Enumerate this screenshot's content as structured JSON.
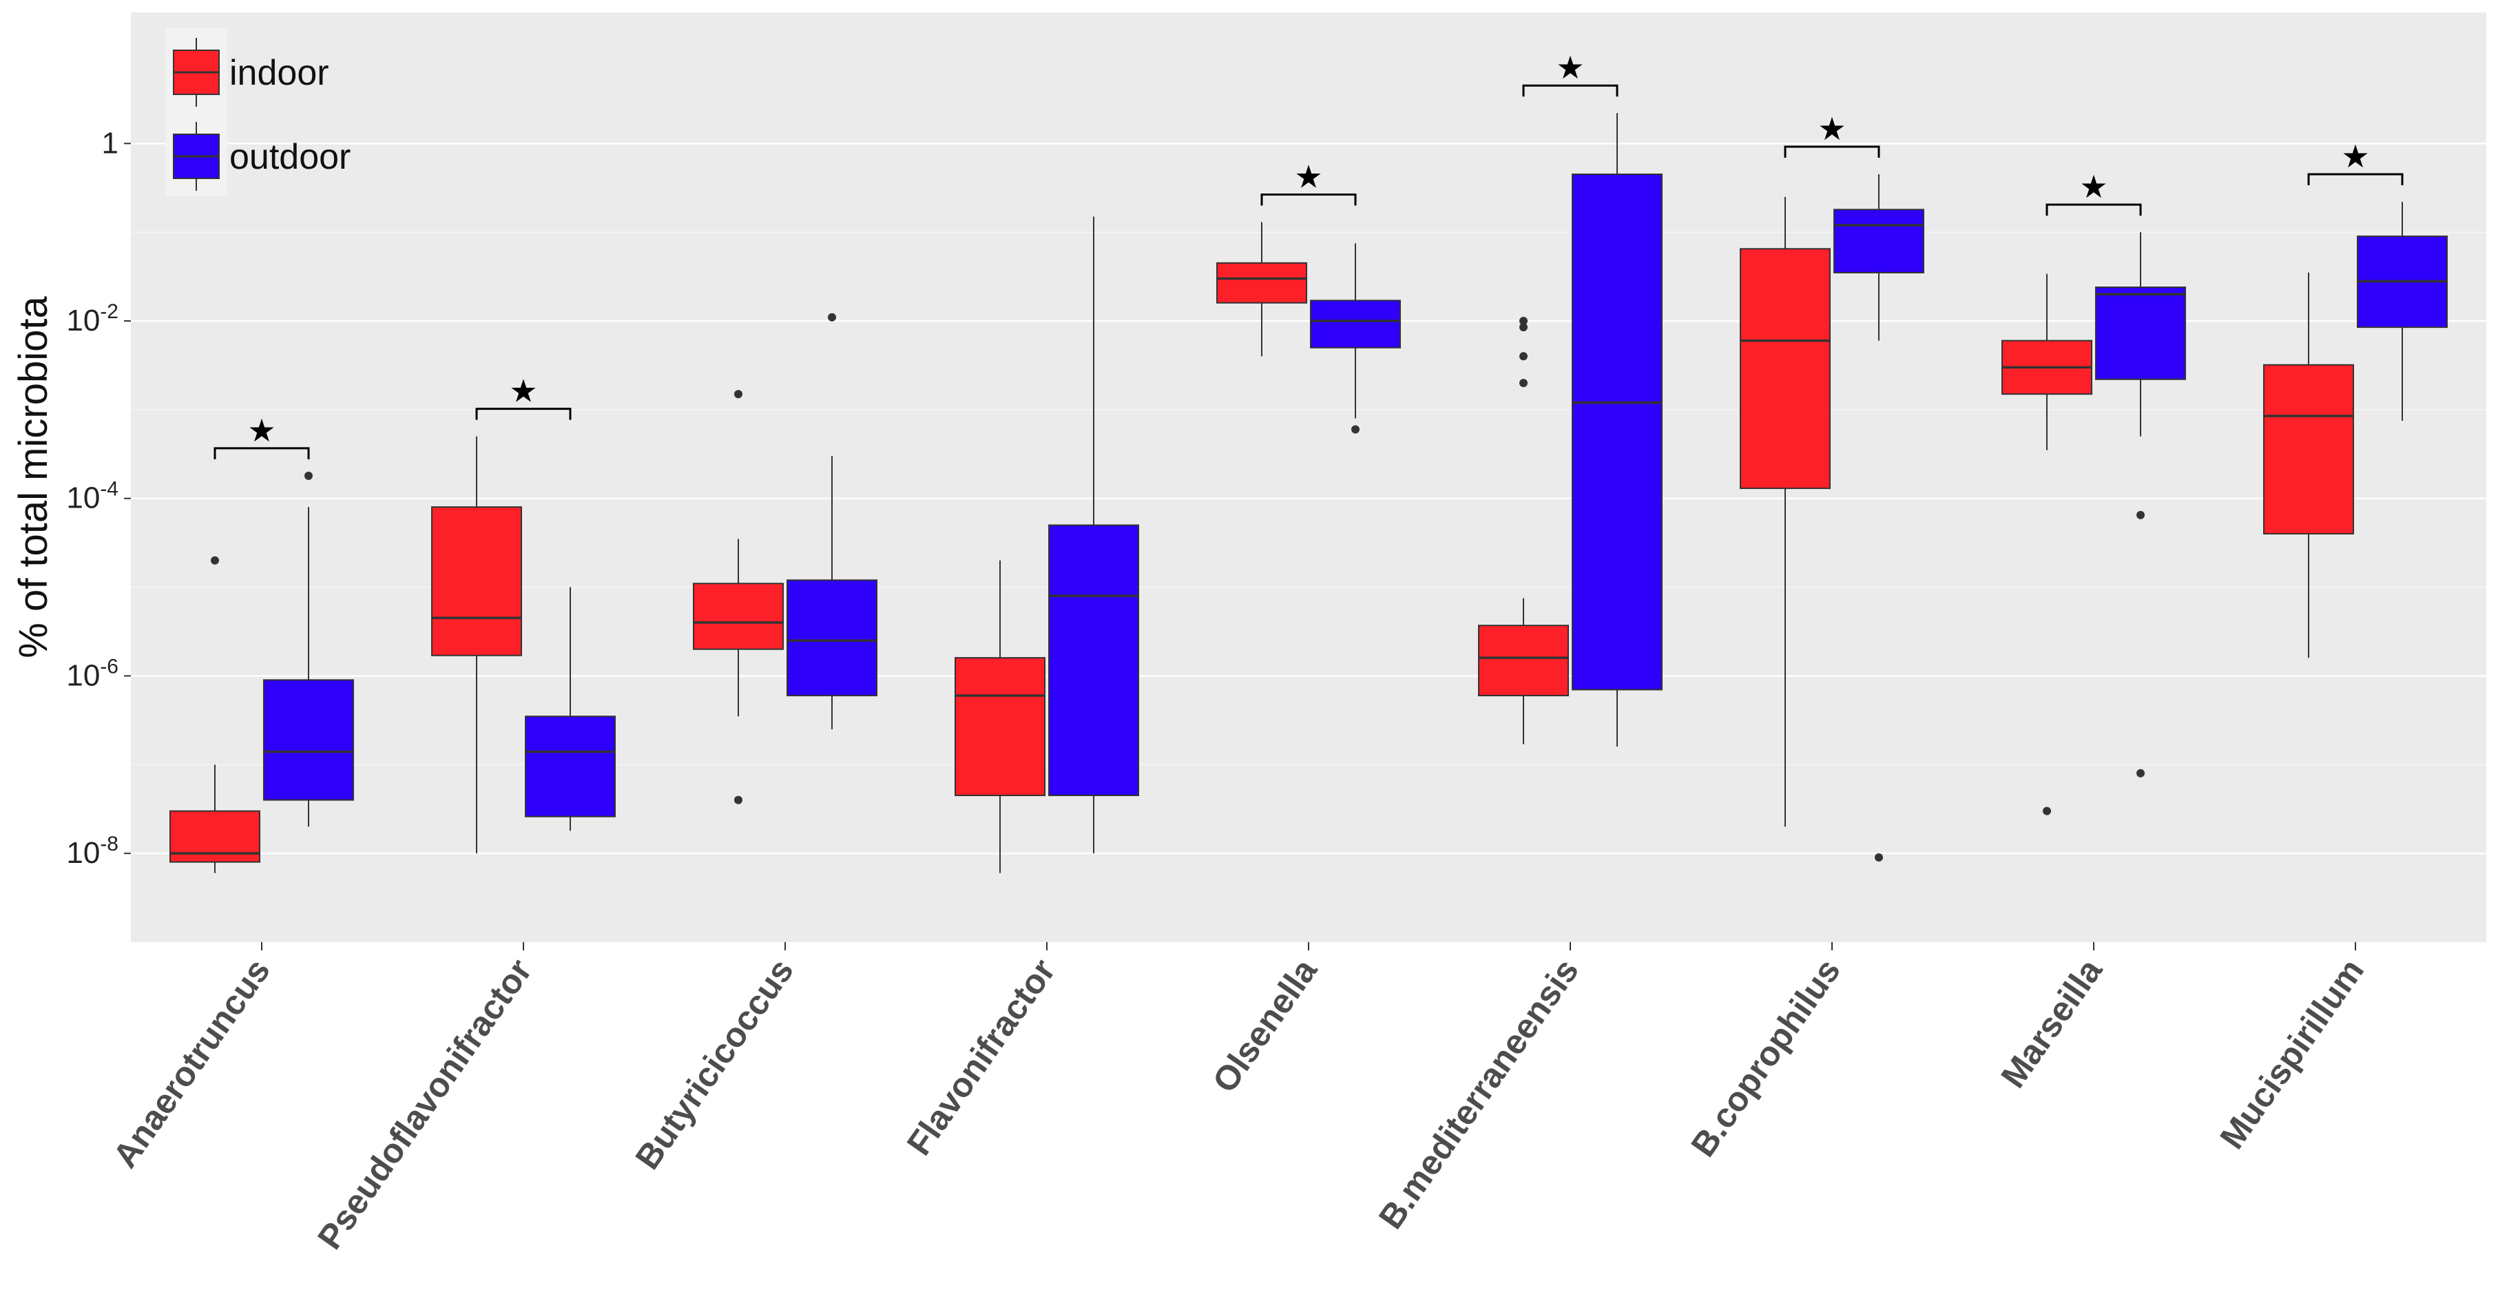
{
  "chart_data": {
    "type": "boxplot",
    "title": "",
    "xlabel": "",
    "ylabel": "% of total microbiota",
    "yscale": "log10",
    "ylim": [
      1e-09,
      30
    ],
    "yticks": [
      {
        "base": "10",
        "exp": "-8",
        "value": 1e-08
      },
      {
        "base": "10",
        "exp": "-6",
        "value": 1e-06
      },
      {
        "base": "10",
        "exp": "-4",
        "value": 0.0001
      },
      {
        "base": "10",
        "exp": "-2",
        "value": 0.01
      },
      {
        "base": "1",
        "exp": "",
        "value": 1
      }
    ],
    "legend": {
      "position": "top-left",
      "entries": [
        {
          "name": "indoor",
          "color": "#fe2028"
        },
        {
          "name": "outdoor",
          "color": "#2e00fa"
        }
      ]
    },
    "significance_marker": "★",
    "categories": [
      {
        "name": "Anaerotruncus",
        "significant": true,
        "indoor": {
          "q1": 8e-09,
          "median": 1e-08,
          "q3": 3e-08,
          "whisker_low": 6e-09,
          "whisker_high": 1e-07,
          "outliers": [
            2e-05
          ]
        },
        "outdoor": {
          "q1": 4e-08,
          "median": 1.4e-07,
          "q3": 9e-07,
          "whisker_low": 2e-08,
          "whisker_high": 8e-05,
          "outliers": [
            0.00018
          ]
        }
      },
      {
        "name": "Pseudoflavonifractor",
        "significant": true,
        "indoor": {
          "q1": 1.7e-06,
          "median": 4.5e-06,
          "q3": 8e-05,
          "whisker_low": 1e-08,
          "whisker_high": 0.0005,
          "outliers": []
        },
        "outdoor": {
          "q1": 2.6e-08,
          "median": 1.4e-07,
          "q3": 3.5e-07,
          "whisker_low": 1.8e-08,
          "whisker_high": 1e-05,
          "outliers": []
        }
      },
      {
        "name": "Butyricicoccus",
        "significant": false,
        "indoor": {
          "q1": 2e-06,
          "median": 4e-06,
          "q3": 1.1e-05,
          "whisker_low": 3.5e-07,
          "whisker_high": 3.5e-05,
          "outliers": [
            4e-08,
            0.0015
          ]
        },
        "outdoor": {
          "q1": 6e-07,
          "median": 2.5e-06,
          "q3": 1.2e-05,
          "whisker_low": 2.5e-07,
          "whisker_high": 0.0003,
          "outliers": [
            0.011
          ]
        }
      },
      {
        "name": "Flavonifractor",
        "significant": false,
        "indoor": {
          "q1": 4.5e-08,
          "median": 6e-07,
          "q3": 1.6e-06,
          "whisker_low": 6e-09,
          "whisker_high": 2e-05,
          "outliers": []
        },
        "outdoor": {
          "q1": 4.5e-08,
          "median": 8e-06,
          "q3": 5e-05,
          "whisker_low": 1e-08,
          "whisker_high": 0.15,
          "outliers": []
        }
      },
      {
        "name": "Olsenella",
        "significant": true,
        "indoor": {
          "q1": 0.016,
          "median": 0.03,
          "q3": 0.045,
          "whisker_low": 0.004,
          "whisker_high": 0.13,
          "outliers": []
        },
        "outdoor": {
          "q1": 0.005,
          "median": 0.01,
          "q3": 0.017,
          "whisker_low": 0.0008,
          "whisker_high": 0.075,
          "outliers": [
            0.0006
          ]
        }
      },
      {
        "name": "B.mediterraneensis",
        "significant": true,
        "indoor": {
          "q1": 6e-07,
          "median": 1.6e-06,
          "q3": 3.7e-06,
          "whisker_low": 1.7e-07,
          "whisker_high": 7.5e-06,
          "outliers": [
            0.002,
            0.004,
            0.0085,
            0.01
          ]
        },
        "outdoor": {
          "q1": 7e-07,
          "median": 0.0012,
          "q3": 0.45,
          "whisker_low": 1.6e-07,
          "whisker_high": 2.2,
          "outliers": []
        }
      },
      {
        "name": "B.coprophilus",
        "significant": true,
        "indoor": {
          "q1": 0.00013,
          "median": 0.006,
          "q3": 0.065,
          "whisker_low": 2e-08,
          "whisker_high": 0.25,
          "outliers": []
        },
        "outdoor": {
          "q1": 0.035,
          "median": 0.12,
          "q3": 0.18,
          "whisker_low": 0.006,
          "whisker_high": 0.45,
          "outliers": [
            9e-09
          ]
        }
      },
      {
        "name": "Marseilla",
        "significant": true,
        "indoor": {
          "q1": 0.0015,
          "median": 0.003,
          "q3": 0.006,
          "whisker_low": 0.00035,
          "whisker_high": 0.034,
          "outliers": [
            3e-08
          ]
        },
        "outdoor": {
          "q1": 0.0022,
          "median": 0.02,
          "q3": 0.024,
          "whisker_low": 0.0005,
          "whisker_high": 0.1,
          "outliers": [
            6.5e-05,
            8e-08
          ]
        }
      },
      {
        "name": "Mucispirillum",
        "significant": true,
        "indoor": {
          "q1": 4e-05,
          "median": 0.00085,
          "q3": 0.0032,
          "whisker_low": 1.6e-06,
          "whisker_high": 0.035,
          "outliers": []
        },
        "outdoor": {
          "q1": 0.0085,
          "median": 0.028,
          "q3": 0.09,
          "whisker_low": 0.00075,
          "whisker_high": 0.22,
          "outliers": []
        }
      }
    ]
  }
}
